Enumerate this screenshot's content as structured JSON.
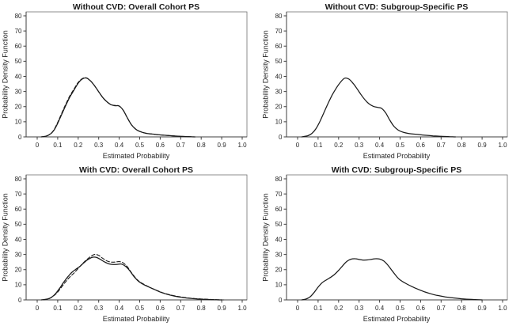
{
  "colors": {
    "curve": "#1a1a1a",
    "axis": "#3f3f3f",
    "frame": "#707070",
    "text": "#262626",
    "background": "#ffffff"
  },
  "chart_data": [
    {
      "type": "line",
      "title": "Without CVD: Overall Cohort PS",
      "xlabel": "Estimated Probability",
      "ylabel": "Probability Density Function",
      "xlim": [
        0,
        1.0
      ],
      "ylim": [
        0,
        80
      ],
      "grid": "off",
      "legend": "none",
      "xticks": [
        0,
        0.1,
        0.2,
        0.3,
        0.4,
        0.5,
        0.6,
        0.7,
        0.8,
        0.9,
        1.0
      ],
      "xtick_labels": [
        "0",
        "0.1",
        "0.2",
        "0.3",
        "0.4",
        "0.5",
        "0.6",
        "0.7",
        "0.8",
        "0.9",
        "1.0"
      ],
      "yticks": [
        0,
        10,
        20,
        30,
        40,
        50,
        60,
        70,
        80
      ],
      "ytick_labels": [
        "0",
        "10",
        "20",
        "30",
        "40",
        "50",
        "60",
        "70",
        "80"
      ],
      "series": [
        {
          "name": "solid-density",
          "style": "solid",
          "points": [
            [
              0.02,
              0
            ],
            [
              0.04,
              0.4
            ],
            [
              0.06,
              1.5
            ],
            [
              0.08,
              4
            ],
            [
              0.1,
              9
            ],
            [
              0.12,
              15
            ],
            [
              0.14,
              21
            ],
            [
              0.16,
              26.5
            ],
            [
              0.18,
              31
            ],
            [
              0.2,
              35.5
            ],
            [
              0.22,
              38.3
            ],
            [
              0.24,
              38.9
            ],
            [
              0.26,
              37
            ],
            [
              0.28,
              33.8
            ],
            [
              0.3,
              29.8
            ],
            [
              0.32,
              26
            ],
            [
              0.34,
              23.2
            ],
            [
              0.36,
              21.3
            ],
            [
              0.38,
              20.6
            ],
            [
              0.4,
              20.4
            ],
            [
              0.42,
              17.5
            ],
            [
              0.44,
              12.5
            ],
            [
              0.46,
              8
            ],
            [
              0.48,
              5.2
            ],
            [
              0.5,
              3.6
            ],
            [
              0.53,
              2.4
            ],
            [
              0.56,
              1.9
            ],
            [
              0.6,
              1.3
            ],
            [
              0.64,
              0.9
            ],
            [
              0.68,
              0.5
            ],
            [
              0.72,
              0.25
            ],
            [
              0.77,
              0
            ]
          ]
        },
        {
          "name": "dashed-density",
          "style": "dashed",
          "points": [
            [
              0.02,
              0
            ],
            [
              0.04,
              0.4
            ],
            [
              0.06,
              1.6
            ],
            [
              0.08,
              4.3
            ],
            [
              0.1,
              9.6
            ],
            [
              0.12,
              15.8
            ],
            [
              0.14,
              21.8
            ],
            [
              0.16,
              27.3
            ],
            [
              0.18,
              31.7
            ],
            [
              0.2,
              36
            ],
            [
              0.22,
              38.5
            ],
            [
              0.24,
              39
            ],
            [
              0.26,
              37
            ],
            [
              0.28,
              33.8
            ],
            [
              0.3,
              29.8
            ],
            [
              0.32,
              26
            ],
            [
              0.34,
              23.2
            ],
            [
              0.36,
              21.3
            ],
            [
              0.38,
              20.8
            ],
            [
              0.4,
              20.4
            ],
            [
              0.42,
              17.5
            ],
            [
              0.44,
              12.5
            ],
            [
              0.46,
              8
            ],
            [
              0.48,
              5.2
            ],
            [
              0.5,
              3.6
            ],
            [
              0.53,
              2.4
            ],
            [
              0.56,
              1.9
            ],
            [
              0.6,
              1.3
            ],
            [
              0.64,
              0.9
            ],
            [
              0.68,
              0.5
            ],
            [
              0.72,
              0.25
            ],
            [
              0.77,
              0
            ]
          ]
        }
      ]
    },
    {
      "type": "line",
      "title": "Without CVD: Subgroup-Specific PS",
      "xlabel": "Estimated Probability",
      "ylabel": "Probability Density Function",
      "xlim": [
        0,
        1.0
      ],
      "ylim": [
        0,
        80
      ],
      "grid": "off",
      "legend": "none",
      "xticks": [
        0,
        0.1,
        0.2,
        0.3,
        0.4,
        0.5,
        0.6,
        0.7,
        0.8,
        0.9,
        1.0
      ],
      "xtick_labels": [
        "0",
        "0.1",
        "0.2",
        "0.3",
        "0.4",
        "0.5",
        "0.6",
        "0.7",
        "0.8",
        "0.9",
        "1.0"
      ],
      "yticks": [
        0,
        10,
        20,
        30,
        40,
        50,
        60,
        70,
        80
      ],
      "ytick_labels": [
        "0",
        "10",
        "20",
        "30",
        "40",
        "50",
        "60",
        "70",
        "80"
      ],
      "series": [
        {
          "name": "solid-density",
          "style": "solid",
          "points": [
            [
              0.02,
              0
            ],
            [
              0.05,
              0.8
            ],
            [
              0.07,
              2.3
            ],
            [
              0.09,
              5.5
            ],
            [
              0.11,
              10.5
            ],
            [
              0.13,
              16.5
            ],
            [
              0.15,
              22.5
            ],
            [
              0.17,
              28
            ],
            [
              0.19,
              32.5
            ],
            [
              0.21,
              36.3
            ],
            [
              0.23,
              38.8
            ],
            [
              0.25,
              38.2
            ],
            [
              0.27,
              35.5
            ],
            [
              0.29,
              31.8
            ],
            [
              0.31,
              27.8
            ],
            [
              0.33,
              24.3
            ],
            [
              0.35,
              21.7
            ],
            [
              0.37,
              20.2
            ],
            [
              0.39,
              19.5
            ],
            [
              0.41,
              18.8
            ],
            [
              0.43,
              15.8
            ],
            [
              0.45,
              11
            ],
            [
              0.47,
              7
            ],
            [
              0.49,
              4.6
            ],
            [
              0.51,
              3.3
            ],
            [
              0.54,
              2.3
            ],
            [
              0.58,
              1.7
            ],
            [
              0.62,
              1.1
            ],
            [
              0.66,
              0.7
            ],
            [
              0.7,
              0.35
            ],
            [
              0.74,
              0.15
            ],
            [
              0.77,
              0
            ]
          ]
        }
      ]
    },
    {
      "type": "line",
      "title": "With CVD: Overall Cohort PS",
      "xlabel": "Estimated Probability",
      "ylabel": "Probability Density Function",
      "xlim": [
        0,
        1.0
      ],
      "ylim": [
        0,
        80
      ],
      "grid": "off",
      "legend": "none",
      "xticks": [
        0,
        0.1,
        0.2,
        0.3,
        0.4,
        0.5,
        0.6,
        0.7,
        0.8,
        0.9,
        1.0
      ],
      "xtick_labels": [
        "0",
        "0.1",
        "0.2",
        "0.3",
        "0.4",
        "0.5",
        "0.6",
        "0.7",
        "0.8",
        "0.9",
        "1.0"
      ],
      "yticks": [
        0,
        10,
        20,
        30,
        40,
        50,
        60,
        70,
        80
      ],
      "ytick_labels": [
        "0",
        "10",
        "20",
        "30",
        "40",
        "50",
        "60",
        "70",
        "80"
      ],
      "series": [
        {
          "name": "solid-density",
          "style": "solid",
          "points": [
            [
              0.02,
              0
            ],
            [
              0.05,
              0.6
            ],
            [
              0.07,
              1.8
            ],
            [
              0.09,
              4.2
            ],
            [
              0.11,
              7.8
            ],
            [
              0.13,
              11.8
            ],
            [
              0.15,
              15.3
            ],
            [
              0.17,
              18.3
            ],
            [
              0.19,
              20.4
            ],
            [
              0.21,
              22.3
            ],
            [
              0.23,
              24.8
            ],
            [
              0.25,
              26.9
            ],
            [
              0.27,
              28.2
            ],
            [
              0.29,
              28
            ],
            [
              0.31,
              26.6
            ],
            [
              0.33,
              25
            ],
            [
              0.35,
              23.8
            ],
            [
              0.37,
              23.4
            ],
            [
              0.39,
              23.5
            ],
            [
              0.41,
              23.7
            ],
            [
              0.43,
              22.3
            ],
            [
              0.45,
              19.5
            ],
            [
              0.47,
              15.8
            ],
            [
              0.49,
              12.8
            ],
            [
              0.51,
              10.8
            ],
            [
              0.54,
              8.8
            ],
            [
              0.57,
              7
            ],
            [
              0.6,
              5.2
            ],
            [
              0.63,
              3.8
            ],
            [
              0.66,
              2.8
            ],
            [
              0.7,
              1.8
            ],
            [
              0.74,
              1.1
            ],
            [
              0.78,
              0.65
            ],
            [
              0.82,
              0.35
            ],
            [
              0.86,
              0.15
            ],
            [
              0.9,
              0
            ]
          ]
        },
        {
          "name": "dashed-density",
          "style": "dashed",
          "points": [
            [
              0.03,
              0
            ],
            [
              0.06,
              0.9
            ],
            [
              0.08,
              2.6
            ],
            [
              0.1,
              5.2
            ],
            [
              0.12,
              8.7
            ],
            [
              0.14,
              12.2
            ],
            [
              0.16,
              15.2
            ],
            [
              0.18,
              17.8
            ],
            [
              0.2,
              20.8
            ],
            [
              0.22,
              23.8
            ],
            [
              0.24,
              26.4
            ],
            [
              0.26,
              28.6
            ],
            [
              0.28,
              30
            ],
            [
              0.3,
              29.4
            ],
            [
              0.32,
              27.4
            ],
            [
              0.34,
              25.8
            ],
            [
              0.36,
              25
            ],
            [
              0.38,
              25
            ],
            [
              0.4,
              25.3
            ],
            [
              0.42,
              24.4
            ],
            [
              0.44,
              21.8
            ],
            [
              0.46,
              18
            ],
            [
              0.48,
              14.5
            ],
            [
              0.5,
              12
            ],
            [
              0.53,
              9.6
            ],
            [
              0.56,
              7.6
            ],
            [
              0.59,
              5.9
            ],
            [
              0.62,
              4.4
            ],
            [
              0.65,
              3.3
            ],
            [
              0.69,
              2.2
            ],
            [
              0.73,
              1.4
            ],
            [
              0.77,
              0.85
            ],
            [
              0.82,
              0.45
            ],
            [
              0.87,
              0.18
            ],
            [
              0.91,
              0
            ]
          ]
        }
      ]
    },
    {
      "type": "line",
      "title": "With CVD: Subgroup-Specific PS",
      "xlabel": "Estimated Probability",
      "ylabel": "Probability Density Function",
      "xlim": [
        0,
        1.0
      ],
      "ylim": [
        0,
        80
      ],
      "grid": "off",
      "legend": "none",
      "xticks": [
        0,
        0.1,
        0.2,
        0.3,
        0.4,
        0.5,
        0.6,
        0.7,
        0.8,
        0.9,
        1.0
      ],
      "xtick_labels": [
        "0",
        "0.1",
        "0.2",
        "0.3",
        "0.4",
        "0.5",
        "0.6",
        "0.7",
        "0.8",
        "0.9",
        "1.0"
      ],
      "yticks": [
        0,
        10,
        20,
        30,
        40,
        50,
        60,
        70,
        80
      ],
      "ytick_labels": [
        "0",
        "10",
        "20",
        "30",
        "40",
        "50",
        "60",
        "70",
        "80"
      ],
      "series": [
        {
          "name": "solid-density",
          "style": "solid",
          "points": [
            [
              0.02,
              0
            ],
            [
              0.04,
              0.5
            ],
            [
              0.06,
              1.9
            ],
            [
              0.08,
              4.8
            ],
            [
              0.1,
              8.4
            ],
            [
              0.12,
              11.4
            ],
            [
              0.14,
              13.2
            ],
            [
              0.16,
              14.8
            ],
            [
              0.18,
              16.8
            ],
            [
              0.2,
              19.5
            ],
            [
              0.22,
              22.6
            ],
            [
              0.24,
              25.4
            ],
            [
              0.26,
              26.9
            ],
            [
              0.28,
              27.2
            ],
            [
              0.3,
              26.7
            ],
            [
              0.32,
              26.3
            ],
            [
              0.34,
              26.4
            ],
            [
              0.36,
              26.8
            ],
            [
              0.38,
              27.2
            ],
            [
              0.4,
              27
            ],
            [
              0.42,
              25.7
            ],
            [
              0.44,
              23
            ],
            [
              0.46,
              19.5
            ],
            [
              0.48,
              16
            ],
            [
              0.5,
              13.2
            ],
            [
              0.53,
              10.7
            ],
            [
              0.56,
              8.7
            ],
            [
              0.59,
              6.9
            ],
            [
              0.62,
              5.3
            ],
            [
              0.65,
              4
            ],
            [
              0.68,
              3
            ],
            [
              0.72,
              2
            ],
            [
              0.76,
              1.3
            ],
            [
              0.8,
              0.75
            ],
            [
              0.85,
              0.3
            ],
            [
              0.9,
              0
            ]
          ]
        }
      ]
    }
  ]
}
